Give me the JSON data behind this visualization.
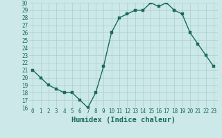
{
  "x": [
    0,
    1,
    2,
    3,
    4,
    5,
    6,
    7,
    8,
    9,
    10,
    11,
    12,
    13,
    14,
    15,
    16,
    17,
    18,
    19,
    20,
    21,
    22,
    23
  ],
  "y": [
    21,
    20,
    19,
    18.5,
    18,
    18,
    17,
    16,
    18,
    21.5,
    26,
    28,
    28.5,
    29,
    29,
    30,
    29.5,
    30,
    29,
    28.5,
    26,
    24.5,
    23,
    21.5
  ],
  "line_color": "#1a6b5a",
  "marker_color": "#1a6b5a",
  "bg_color": "#cce8e8",
  "grid_color": "#aacfcf",
  "xlabel": "Humidex (Indice chaleur)",
  "xlabel_color": "#1a6b5a",
  "ylim": [
    16,
    30
  ],
  "xlim": [
    -0.5,
    23.5
  ],
  "yticks": [
    16,
    17,
    18,
    19,
    20,
    21,
    22,
    23,
    24,
    25,
    26,
    27,
    28,
    29,
    30
  ],
  "xticks": [
    0,
    1,
    2,
    3,
    4,
    5,
    6,
    7,
    8,
    9,
    10,
    11,
    12,
    13,
    14,
    15,
    16,
    17,
    18,
    19,
    20,
    21,
    22,
    23
  ],
  "tick_label_color": "#1a6b5a",
  "tick_label_fontsize": 5.5,
  "xlabel_fontsize": 7.5,
  "line_width": 1.0,
  "marker_size": 2.5
}
